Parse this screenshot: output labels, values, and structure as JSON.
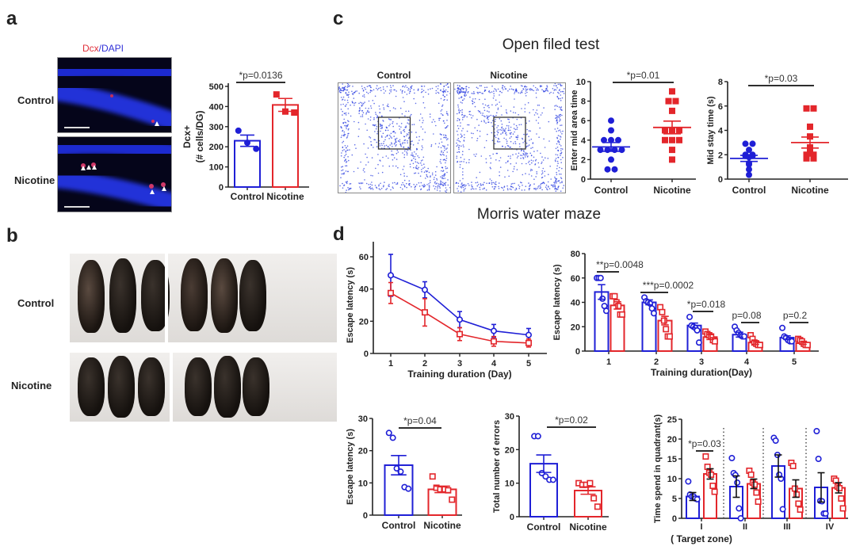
{
  "panels": {
    "a": {
      "letter": "a",
      "stain_label_red": "Dcx",
      "stain_label_blue": "/DAPI",
      "row_labels": [
        "Control",
        "Nicotine"
      ]
    },
    "b": {
      "letter": "b",
      "row_labels": [
        "Control",
        "Nicotine"
      ]
    },
    "c": {
      "letter": "c",
      "title": "Open filed test",
      "track_titles": [
        "Control",
        "Nicotine"
      ]
    },
    "d": {
      "letter": "d",
      "title": "Morris water maze"
    }
  },
  "colors": {
    "control": "#1f1fd6",
    "nicotine": "#e3262b",
    "stain_red": "#e0303a",
    "stain_blue": "#3030d8"
  },
  "chart_data": [
    {
      "id": "a",
      "type": "bar",
      "ylabel": [
        "Dcx+",
        "(# cells/DG)"
      ],
      "ylim": [
        0,
        500
      ],
      "yticks": [
        "0",
        "100",
        "200",
        "300",
        "400",
        "500"
      ],
      "categories": [
        "Control",
        "Nicotine"
      ],
      "series": {
        "control": {
          "mean": 230,
          "sem": 28,
          "points": [
            280,
            220,
            190
          ]
        },
        "nicotine": {
          "mean": 408,
          "sem": 32,
          "points": [
            460,
            375,
            370
          ]
        }
      },
      "significance": [
        {
          "label": "*p=0.0136"
        }
      ]
    },
    {
      "id": "c1",
      "type": "scatter",
      "ylabel": "Enter mid area time",
      "ylim": [
        0,
        10
      ],
      "yticks": [
        "0",
        "2",
        "4",
        "6",
        "8",
        "10"
      ],
      "categories": [
        "Control",
        "Nicotine"
      ],
      "series": {
        "control": {
          "mean": 3.3,
          "sem": 0.45,
          "points": [
            6,
            5,
            4,
            4,
            4,
            3,
            3,
            3,
            3,
            2,
            1,
            1
          ]
        },
        "nicotine": {
          "mean": 5.3,
          "sem": 0.65,
          "points": [
            9,
            8,
            8,
            7,
            5,
            5,
            5,
            4,
            4,
            4,
            3,
            2
          ]
        }
      },
      "significance": [
        {
          "label": "*p=0.01"
        }
      ]
    },
    {
      "id": "c2",
      "type": "scatter",
      "ylabel": "Mid stay time (s)",
      "ylim": [
        0,
        8
      ],
      "yticks": [
        "0",
        "2",
        "4",
        "6",
        "8"
      ],
      "categories": [
        "Control",
        "Nicotine"
      ],
      "series": {
        "control": {
          "mean": 1.7,
          "sem": 0.25,
          "points": [
            2.9,
            2.9,
            2.4,
            2.0,
            2.0,
            1.9,
            1.9,
            1.8,
            1.3,
            1.2,
            0.8,
            0.35
          ]
        },
        "nicotine": {
          "mean": 3.0,
          "sem": 0.45,
          "points": [
            5.8,
            5.8,
            4.3,
            3.5,
            2.6,
            2.1,
            2.0,
            1.8,
            1.7,
            1.7,
            1.8,
            2.0
          ]
        }
      },
      "significance": [
        {
          "label": "*p=0.03"
        }
      ]
    },
    {
      "id": "d1",
      "type": "line",
      "ylabel": "Escape latency (s)",
      "xlabel": "Training duration (Day)",
      "ylim": [
        0,
        60
      ],
      "yticks": [
        "0",
        "20",
        "40",
        "60"
      ],
      "x": [
        "1",
        "2",
        "3",
        "4",
        "5"
      ],
      "series": {
        "control": {
          "values": [
            48.5,
            39.5,
            21,
            14,
            11.5
          ],
          "err": [
            13,
            5,
            5,
            4,
            4
          ]
        },
        "nicotine": {
          "values": [
            37.5,
            25.5,
            12,
            7.5,
            6.5
          ],
          "err": [
            6.5,
            8.5,
            4,
            3,
            2.5
          ]
        }
      }
    },
    {
      "id": "d2",
      "type": "bar",
      "ylabel": "Escape latency (s)",
      "xlabel": "Training duration(Day)",
      "ylim": [
        0,
        80
      ],
      "yticks": [
        "0",
        "20",
        "40",
        "60",
        "80"
      ],
      "categories": [
        "1",
        "2",
        "3",
        "4",
        "5"
      ],
      "series": {
        "control": {
          "mean": [
            48.5,
            40,
            21,
            13.5,
            11
          ],
          "sem": [
            6,
            2,
            2,
            2,
            1.5
          ],
          "points": [
            [
              60,
              60,
              60,
              43,
              37,
              33
            ],
            [
              44,
              41,
              40,
              39,
              35,
              31
            ],
            [
              28,
              21,
              20,
              19,
              17,
              7
            ],
            [
              20,
              17,
              15,
              13,
              12,
              12
            ],
            [
              19,
              12,
              11,
              9,
              8,
              8
            ]
          ]
        },
        "nicotine": {
          "mean": [
            37.5,
            25,
            11.5,
            7,
            6.5
          ],
          "sem": [
            3,
            3.5,
            2,
            1.5,
            1
          ],
          "points": [
            [
              45,
              45,
              40,
              37,
              30,
              30
            ],
            [
              36,
              32,
              25,
              18,
              12,
              12
            ],
            [
              16,
              14,
              13,
              12,
              9,
              8
            ],
            [
              13,
              10,
              7,
              6,
              5,
              5
            ],
            [
              10,
              9,
              8,
              6,
              5,
              5
            ]
          ]
        }
      },
      "significance": [
        {
          "label": "**p=0.0048"
        },
        {
          "label": "***p=0.0002"
        },
        {
          "label": "*p=0.018"
        },
        {
          "label": "p=0.08"
        },
        {
          "label": "p=0.2"
        }
      ]
    },
    {
      "id": "d3",
      "type": "bar",
      "ylabel": "Escape latency (s)",
      "ylim": [
        0,
        30
      ],
      "yticks": [
        "0",
        "10",
        "20",
        "30"
      ],
      "categories": [
        "Control",
        "Nicotine"
      ],
      "series": {
        "control": {
          "mean": 15.5,
          "sem": 3,
          "points": [
            25.5,
            24,
            14.5,
            13.5,
            8.7,
            8.2
          ]
        },
        "nicotine": {
          "mean": 8,
          "sem": 1,
          "points": [
            12,
            8.5,
            8,
            8,
            7.7,
            4.8
          ]
        }
      },
      "significance": [
        {
          "label": "*p=0.04"
        }
      ]
    },
    {
      "id": "d4",
      "type": "bar",
      "ylabel": "Total number of errors",
      "ylim": [
        0,
        30
      ],
      "yticks": [
        "0",
        "10",
        "20",
        "30"
      ],
      "categories": [
        "Control",
        "Nicotine"
      ],
      "series": {
        "control": {
          "mean": 15.8,
          "sem": 2.6,
          "points": [
            24,
            24,
            13,
            12,
            11,
            11
          ]
        },
        "nicotine": {
          "mean": 7.8,
          "sem": 1.1,
          "points": [
            10,
            9.5,
            9.5,
            10,
            5.5,
            3
          ]
        }
      },
      "significance": [
        {
          "label": "*p=0.02"
        }
      ]
    },
    {
      "id": "d5",
      "type": "bar",
      "ylabel": "Time spend in quadrant(s)",
      "ylim": [
        0,
        25
      ],
      "yticks": [
        "0",
        "5",
        "10",
        "15",
        "20",
        "25"
      ],
      "categories": [
        "I",
        "II",
        "III",
        "IV"
      ],
      "category_note": "( Target zone)",
      "series": {
        "control": {
          "mean": [
            5.5,
            8,
            13.2,
            7.8
          ],
          "sem": [
            1,
            2.7,
            2.8,
            3.7
          ],
          "points": [
            [
              9.3,
              6,
              5.5,
              5.5,
              5,
              4.8
            ],
            [
              15.2,
              11.4,
              10.9,
              9,
              2.5,
              0
            ],
            [
              20.3,
              19.6,
              16,
              11,
              10,
              2.3
            ],
            [
              22,
              15,
              4.4,
              4.3,
              1.2,
              1.2
            ]
          ]
        },
        "nicotine": {
          "mean": [
            11.2,
            8.7,
            7.5,
            7.7
          ],
          "sem": [
            1.3,
            1.2,
            2.2,
            1.3
          ],
          "points": [
            [
              15.6,
              13,
              11.5,
              11,
              8.2,
              6.7
            ],
            [
              12,
              11,
              9,
              8.5,
              6.5,
              4.2
            ],
            [
              14,
              13.2,
              7.5,
              6,
              3.7,
              2.2
            ],
            [
              10,
              9.5,
              8,
              7.6,
              5,
              2.5
            ]
          ]
        }
      },
      "significance": [
        {
          "label": "*p=0.03"
        }
      ]
    }
  ]
}
